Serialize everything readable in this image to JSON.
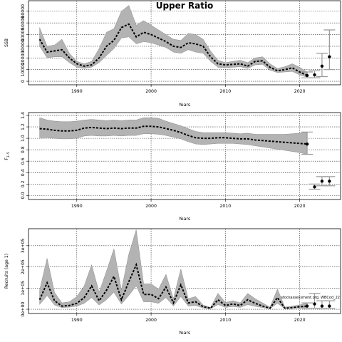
{
  "chart_data": [
    {
      "type": "area",
      "title": "Upper Ratio",
      "xlabel": "Years",
      "ylabel": "SSB",
      "xlim": [
        1983.5,
        2025.5
      ],
      "ylim": [
        -3000,
        69000
      ],
      "xticks": [
        1990,
        2000,
        2010,
        2020
      ],
      "yticks": [
        0,
        10000,
        20000,
        30000,
        40000,
        50000,
        60000
      ],
      "ytick_labels": [
        "0",
        "10000",
        "20000",
        "30000",
        "40000",
        "50000",
        "60000"
      ],
      "grid": true,
      "x": [
        1985,
        1986,
        1987,
        1988,
        1989,
        1990,
        1991,
        1992,
        1993,
        1994,
        1995,
        1996,
        1997,
        1998,
        1999,
        2000,
        2001,
        2002,
        2003,
        2004,
        2005,
        2006,
        2007,
        2008,
        2009,
        2010,
        2011,
        2012,
        2013,
        2014,
        2015,
        2016,
        2017,
        2018,
        2019,
        2020,
        2021
      ],
      "series": [
        {
          "values": [
            36000,
            25000,
            26000,
            27000,
            20000,
            15000,
            13000,
            14000,
            20000,
            30000,
            35000,
            46000,
            49000,
            38000,
            42000,
            40000,
            37000,
            34000,
            30000,
            29000,
            33000,
            32000,
            30000,
            21000,
            15000,
            14000,
            14500,
            15000,
            13000,
            17000,
            17500,
            12000,
            9000,
            10000,
            11500,
            8000,
            5000
          ]
        },
        {
          "values": [
            46000,
            30000,
            31000,
            36000,
            24000,
            17000,
            15000,
            17000,
            28000,
            42000,
            45000,
            60000,
            65000,
            48000,
            52000,
            48000,
            44000,
            40000,
            36000,
            35000,
            41000,
            40000,
            36000,
            26000,
            18000,
            16000,
            17000,
            18000,
            16000,
            20000,
            21000,
            15000,
            11000,
            12500,
            15000,
            12000,
            8000
          ]
        },
        {
          "values": [
            30000,
            20000,
            21000,
            21000,
            16000,
            12000,
            11000,
            12000,
            16000,
            22000,
            28000,
            37000,
            38000,
            32000,
            34000,
            33000,
            31000,
            29000,
            25000,
            24000,
            27000,
            25000,
            24000,
            17000,
            12000,
            11500,
            12000,
            12500,
            11000,
            14000,
            14500,
            9500,
            7500,
            8000,
            8500,
            5500,
            3500
          ]
        }
      ],
      "forecast": {
        "x": [
          2021,
          2022,
          2023,
          2024
        ],
        "median": [
          5000,
          5500,
          13000,
          21000
        ],
        "lower": [
          3000,
          3000,
          4000,
          10000
        ],
        "upper": [
          8000,
          9000,
          24000,
          44000
        ]
      }
    },
    {
      "type": "area",
      "title": "",
      "xlabel": "Years",
      "ylabel": "F3-5",
      "ylabel_main": "F",
      "ylabel_sub": "3–5",
      "xlim": [
        1983.5,
        2025.5
      ],
      "ylim": [
        -0.07,
        1.45
      ],
      "xticks": [
        1990,
        2000,
        2010,
        2020
      ],
      "yticks": [
        0,
        0.2,
        0.4,
        0.6,
        0.8,
        1.0,
        1.2,
        1.4
      ],
      "ytick_labels": [
        "0.0",
        "0.2",
        "0.4",
        "0.6",
        "0.8",
        "1.0",
        "1.2",
        "1.4"
      ],
      "grid": true,
      "x": [
        1985,
        1986,
        1987,
        1988,
        1989,
        1990,
        1991,
        1992,
        1993,
        1994,
        1995,
        1996,
        1997,
        1998,
        1999,
        2000,
        2001,
        2002,
        2003,
        2004,
        2005,
        2006,
        2007,
        2008,
        2009,
        2010,
        2011,
        2012,
        2013,
        2014,
        2015,
        2016,
        2017,
        2018,
        2019,
        2020,
        2021
      ],
      "series": [
        {
          "values": [
            1.17,
            1.16,
            1.14,
            1.13,
            1.13,
            1.14,
            1.18,
            1.19,
            1.18,
            1.17,
            1.18,
            1.17,
            1.18,
            1.18,
            1.21,
            1.21,
            1.2,
            1.17,
            1.14,
            1.1,
            1.05,
            1.01,
            1.0,
            1.0,
            1.01,
            1.01,
            1.0,
            0.99,
            0.99,
            0.97,
            0.96,
            0.95,
            0.94,
            0.93,
            0.92,
            0.91,
            0.9
          ]
        },
        {
          "values": [
            1.36,
            1.32,
            1.3,
            1.29,
            1.29,
            1.3,
            1.32,
            1.33,
            1.32,
            1.31,
            1.32,
            1.31,
            1.32,
            1.32,
            1.36,
            1.36,
            1.35,
            1.3,
            1.26,
            1.22,
            1.17,
            1.12,
            1.1,
            1.1,
            1.1,
            1.1,
            1.09,
            1.08,
            1.09,
            1.07,
            1.07,
            1.07,
            1.07,
            1.07,
            1.08,
            1.09,
            1.11
          ]
        },
        {
          "values": [
            1.01,
            1.01,
            1.0,
            0.99,
            0.99,
            1.0,
            1.04,
            1.05,
            1.04,
            1.04,
            1.05,
            1.04,
            1.05,
            1.05,
            1.08,
            1.08,
            1.07,
            1.05,
            1.02,
            0.99,
            0.94,
            0.9,
            0.89,
            0.9,
            0.91,
            0.91,
            0.91,
            0.9,
            0.89,
            0.87,
            0.85,
            0.83,
            0.81,
            0.79,
            0.77,
            0.75,
            0.72
          ]
        }
      ],
      "forecast": {
        "x": [
          2021,
          2022,
          2023,
          2024
        ],
        "median": [
          0.9,
          0.15,
          0.25,
          0.25
        ],
        "lower": [
          0.72,
          0.11,
          0.17,
          0.17
        ],
        "upper": [
          1.11,
          0.2,
          0.33,
          0.33
        ]
      }
    },
    {
      "type": "area",
      "title": "",
      "xlabel": "Years",
      "ylabel": "Recruits (age 1)",
      "xlim": [
        1983.5,
        2025.5
      ],
      "ylim": [
        -20000,
        380000
      ],
      "xticks": [
        1990,
        2000,
        2010,
        2020
      ],
      "yticks": [
        0,
        100000,
        200000,
        300000
      ],
      "ytick_labels": [
        "0e+00",
        "1e+05",
        "2e+05",
        "3e+05"
      ],
      "grid": true,
      "x": [
        1985,
        1986,
        1987,
        1988,
        1989,
        1990,
        1991,
        1992,
        1993,
        1994,
        1995,
        1996,
        1997,
        1998,
        1999,
        2000,
        2001,
        2002,
        2003,
        2004,
        2005,
        2006,
        2007,
        2008,
        2009,
        2010,
        2011,
        2012,
        2013,
        2014,
        2015,
        2016,
        2017,
        2018,
        2019,
        2020,
        2021
      ],
      "series": [
        {
          "values": [
            45000,
            125000,
            40000,
            15000,
            18000,
            28000,
            55000,
            110000,
            40000,
            90000,
            155000,
            45000,
            130000,
            210000,
            70000,
            70000,
            50000,
            105000,
            30000,
            115000,
            30000,
            35000,
            12000,
            5000,
            45000,
            18000,
            25000,
            18000,
            45000,
            28000,
            15000,
            5000,
            55000,
            5000,
            8000,
            12000,
            15000
          ]
        },
        {
          "values": [
            90000,
            240000,
            80000,
            30000,
            35000,
            60000,
            110000,
            210000,
            80000,
            180000,
            285000,
            90000,
            260000,
            375000,
            120000,
            120000,
            95000,
            165000,
            50000,
            190000,
            50000,
            60000,
            20000,
            9000,
            75000,
            32000,
            40000,
            30000,
            75000,
            50000,
            30000,
            10000,
            95000,
            10000,
            15000,
            20000,
            30000
          ]
        },
        {
          "values": [
            22000,
            65000,
            20000,
            8000,
            10000,
            15000,
            28000,
            55000,
            20000,
            45000,
            80000,
            24000,
            65000,
            110000,
            35000,
            35000,
            28000,
            55000,
            15000,
            60000,
            15000,
            18000,
            6000,
            2500,
            22000,
            9000,
            13000,
            9000,
            22000,
            14000,
            8000,
            2500,
            28000,
            2500,
            4000,
            6000,
            7000
          ]
        }
      ],
      "forecast": {
        "x": [
          2021,
          2022,
          2023,
          2024
        ],
        "median": [
          15000,
          25000,
          15000,
          15000
        ],
        "lower": [
          5000,
          5000,
          5000,
          5000
        ],
        "upper": [
          30000,
          75000,
          40000,
          40000
        ]
      },
      "watermark": "stockassessment.org, WBCod_22"
    }
  ]
}
